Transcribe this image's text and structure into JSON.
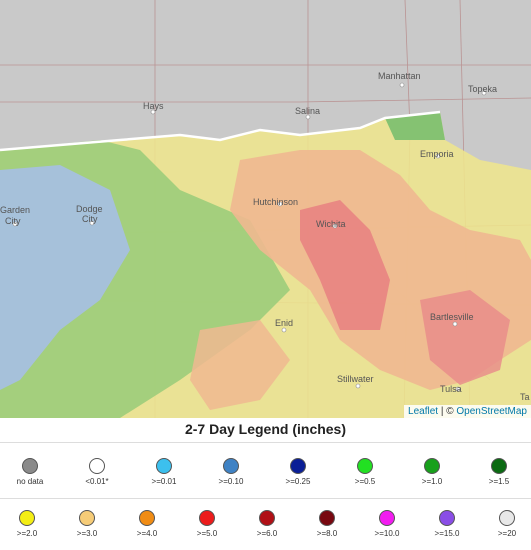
{
  "map": {
    "cities": [
      {
        "name": "Manhattan"
      },
      {
        "name": "Topeka"
      },
      {
        "name": "Hays"
      },
      {
        "name": "Salina"
      },
      {
        "name": "Emporia"
      },
      {
        "name": "Garden"
      },
      {
        "name": "City"
      },
      {
        "name": "Dodge"
      },
      {
        "name": "City"
      },
      {
        "name": "Hutchinson"
      },
      {
        "name": "Wichita"
      },
      {
        "name": "Bartlesville"
      },
      {
        "name": "Enid"
      },
      {
        "name": "Stillwater"
      },
      {
        "name": "Tulsa"
      },
      {
        "name": "Ta"
      }
    ],
    "attribution": {
      "leaflet": "Leaflet",
      "separator": " | © ",
      "osm": "OpenStreetMap"
    }
  },
  "legend": {
    "title": "2-7 Day Legend (inches)",
    "row1": [
      {
        "label": "no data",
        "color": "#8a8a8a"
      },
      {
        "label": "<0.01*",
        "color": "#ffffff"
      },
      {
        "label": ">=0.01",
        "color": "#3cc0ee"
      },
      {
        "label": ">=0.10",
        "color": "#3f82c4"
      },
      {
        "label": ">=0.25",
        "color": "#0a1e96"
      },
      {
        "label": ">=0.5",
        "color": "#22e022"
      },
      {
        "label": ">=1.0",
        "color": "#18a01c"
      },
      {
        "label": ">=1.5",
        "color": "#0b6a12"
      }
    ],
    "row2": [
      {
        "label": ">=2.0",
        "color": "#f4ee14"
      },
      {
        "label": ">=3.0",
        "color": "#f6cc78"
      },
      {
        "label": ">=4.0",
        "color": "#f08c14"
      },
      {
        "label": ">=5.0",
        "color": "#ec1c1c"
      },
      {
        "label": ">=6.0",
        "color": "#b01016"
      },
      {
        "label": ">=8.0",
        "color": "#780810"
      },
      {
        "label": ">=10.0",
        "color": "#f21cf0"
      },
      {
        "label": ">=15.0",
        "color": "#8a4ee6"
      },
      {
        "label": ">=20",
        "color": "#e8e8e8"
      }
    ]
  }
}
